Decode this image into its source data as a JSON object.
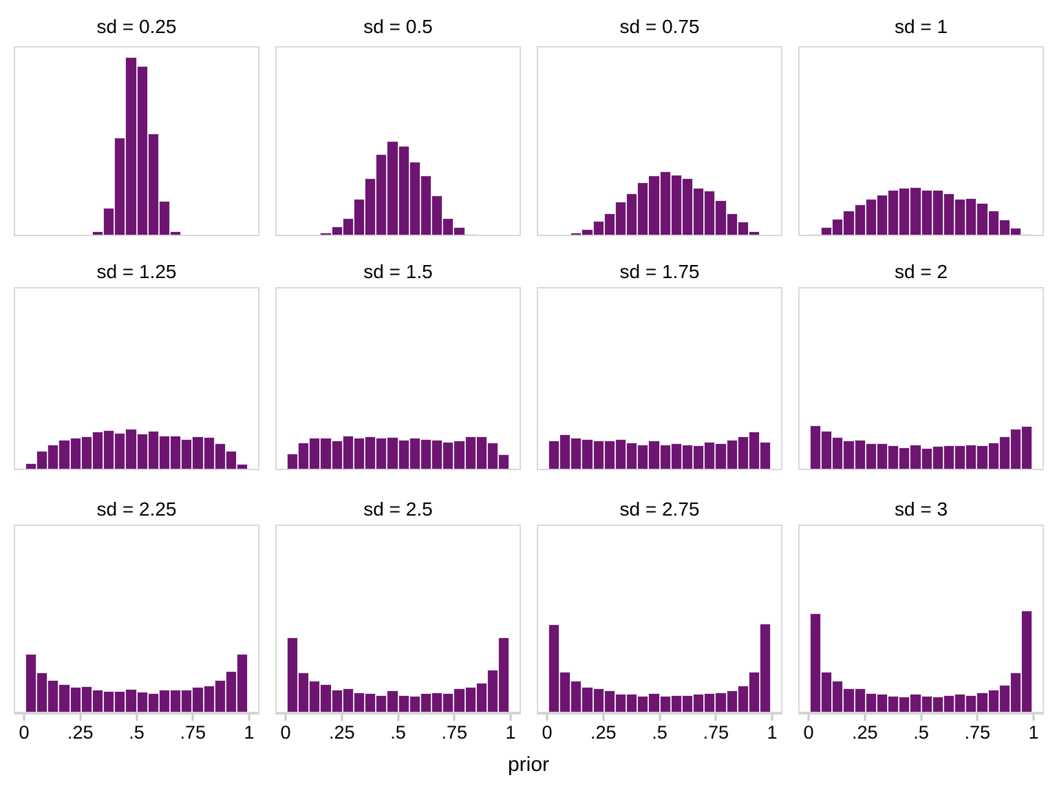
{
  "figure": {
    "bar_color": "#6E1572",
    "bar_outline_color": "#e9e0ea",
    "panel_border_color": "#d9d9d9",
    "axis_tick_color": "#c9c9c9",
    "background_color": "#ffffff",
    "text_color": "#000000"
  },
  "chart_data": {
    "type": "bar",
    "subtype": "histogram small-multiples, 3 rows x 4 columns, shared x and y scales",
    "title": "",
    "xlabel": "prior",
    "ylabel": "",
    "x_range": [
      0,
      1
    ],
    "bin_width": 0.05,
    "n_bins": 20,
    "x_ticks": [
      0,
      0.25,
      0.5,
      0.75,
      1
    ],
    "x_tick_labels": [
      "0",
      ".25",
      ".5",
      ".75",
      "1"
    ],
    "y_axis_shown": false,
    "grid": false,
    "legend": false,
    "note": "heights are fractions of the shared y-scale (panel height); bins start at prior=0, width 0.05",
    "facets": [
      {
        "title": "sd = 0.25",
        "sd": 0.25,
        "heights": [
          0,
          0,
          0,
          0,
          0,
          0,
          0.02,
          0.145,
          0.52,
          0.95,
          0.9,
          0.54,
          0.18,
          0.02,
          0,
          0,
          0,
          0,
          0,
          0
        ]
      },
      {
        "title": "sd = 0.5",
        "sd": 0.5,
        "heights": [
          0,
          0,
          0,
          0.01,
          0.045,
          0.09,
          0.19,
          0.3,
          0.43,
          0.5,
          0.475,
          0.39,
          0.315,
          0.21,
          0.09,
          0.04,
          0.005,
          0,
          0,
          0
        ]
      },
      {
        "title": "sd = 0.75",
        "sd": 0.75,
        "heights": [
          0,
          0,
          0.01,
          0.03,
          0.075,
          0.115,
          0.175,
          0.22,
          0.28,
          0.315,
          0.34,
          0.32,
          0.3,
          0.25,
          0.235,
          0.185,
          0.115,
          0.07,
          0.02,
          0
        ]
      },
      {
        "title": "sd = 1",
        "sd": 1,
        "heights": [
          0.005,
          0.04,
          0.085,
          0.13,
          0.16,
          0.19,
          0.215,
          0.24,
          0.25,
          0.255,
          0.24,
          0.24,
          0.22,
          0.19,
          0.195,
          0.17,
          0.13,
          0.08,
          0.035,
          0.003
        ]
      },
      {
        "title": "sd = 1.25",
        "sd": 1.25,
        "heights": [
          0.03,
          0.1,
          0.135,
          0.16,
          0.17,
          0.18,
          0.205,
          0.215,
          0.2,
          0.22,
          0.195,
          0.21,
          0.185,
          0.185,
          0.165,
          0.18,
          0.175,
          0.14,
          0.1,
          0.025
        ]
      },
      {
        "title": "sd = 1.5",
        "sd": 1.5,
        "heights": [
          0.085,
          0.145,
          0.17,
          0.17,
          0.155,
          0.185,
          0.17,
          0.18,
          0.17,
          0.175,
          0.16,
          0.17,
          0.165,
          0.16,
          0.15,
          0.155,
          0.18,
          0.18,
          0.145,
          0.08
        ]
      },
      {
        "title": "sd = 1.75",
        "sd": 1.75,
        "heights": [
          0.155,
          0.19,
          0.17,
          0.165,
          0.155,
          0.155,
          0.165,
          0.145,
          0.135,
          0.155,
          0.135,
          0.14,
          0.135,
          0.13,
          0.15,
          0.14,
          0.16,
          0.18,
          0.205,
          0.15
        ]
      },
      {
        "title": "sd = 2",
        "sd": 2,
        "heights": [
          0.24,
          0.21,
          0.175,
          0.155,
          0.16,
          0.14,
          0.14,
          0.13,
          0.12,
          0.135,
          0.115,
          0.125,
          0.13,
          0.13,
          0.135,
          0.13,
          0.145,
          0.18,
          0.22,
          0.235
        ]
      },
      {
        "title": "sd = 2.25",
        "sd": 2.25,
        "heights": [
          0.31,
          0.21,
          0.17,
          0.15,
          0.133,
          0.136,
          0.12,
          0.11,
          0.11,
          0.123,
          0.108,
          0.1,
          0.12,
          0.117,
          0.117,
          0.133,
          0.14,
          0.17,
          0.22,
          0.31
        ]
      },
      {
        "title": "sd = 2.5",
        "sd": 2.5,
        "heights": [
          0.4,
          0.21,
          0.165,
          0.15,
          0.12,
          0.125,
          0.105,
          0.1,
          0.09,
          0.115,
          0.09,
          0.085,
          0.1,
          0.105,
          0.1,
          0.125,
          0.135,
          0.155,
          0.225,
          0.4
        ]
      },
      {
        "title": "sd = 2.75",
        "sd": 2.75,
        "heights": [
          0.47,
          0.215,
          0.165,
          0.135,
          0.125,
          0.115,
          0.095,
          0.095,
          0.085,
          0.1,
          0.085,
          0.09,
          0.09,
          0.095,
          0.1,
          0.105,
          0.115,
          0.14,
          0.215,
          0.475
        ]
      },
      {
        "title": "sd = 3",
        "sd": 3,
        "heights": [
          0.53,
          0.215,
          0.165,
          0.125,
          0.125,
          0.1,
          0.095,
          0.085,
          0.08,
          0.095,
          0.085,
          0.08,
          0.09,
          0.095,
          0.09,
          0.105,
          0.12,
          0.145,
          0.21,
          0.545
        ]
      }
    ]
  }
}
